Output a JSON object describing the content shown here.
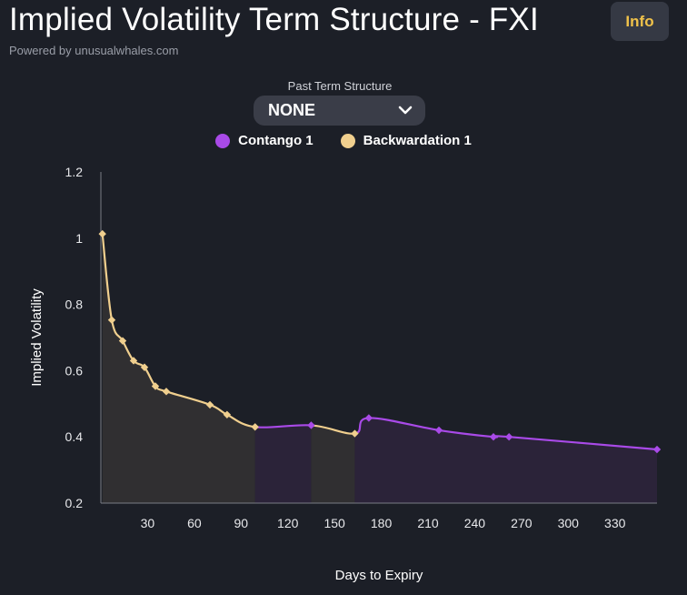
{
  "header": {
    "title": "Implied Volatility Term Structure - FXI",
    "subtitle": "Powered by unusualwhales.com",
    "info_label": "Info"
  },
  "controls": {
    "past_label": "Past Term Structure",
    "past_value": "NONE"
  },
  "colors": {
    "background": "#1c1f27",
    "contango": "#a94ae8",
    "backwardation": "#f0cf8e",
    "contango_fill": "#2b2339",
    "backwardation_fill": "#302f31",
    "info_accent": "#f0c24a"
  },
  "chart_data": {
    "type": "line",
    "xlabel": "Days to Expiry",
    "ylabel": "Implied Volatility",
    "ylim": [
      0.2,
      1.2
    ],
    "xlim": [
      0,
      357
    ],
    "x_ticks": [
      30,
      60,
      90,
      120,
      150,
      180,
      210,
      240,
      270,
      300,
      330
    ],
    "y_ticks": [
      1.2,
      1,
      0.8,
      0.6,
      0.4,
      0.2
    ],
    "legend_position": "top-center",
    "grid": false,
    "series": [
      {
        "name": "Contango 1",
        "color": "#a94ae8"
      },
      {
        "name": "Backwardation 1",
        "color": "#f0cf8e"
      }
    ],
    "points": [
      {
        "x": 1,
        "y": 1.013
      },
      {
        "x": 7,
        "y": 0.753
      },
      {
        "x": 14,
        "y": 0.69
      },
      {
        "x": 21,
        "y": 0.63
      },
      {
        "x": 28,
        "y": 0.61
      },
      {
        "x": 35,
        "y": 0.553
      },
      {
        "x": 42,
        "y": 0.537
      },
      {
        "x": 70,
        "y": 0.497
      },
      {
        "x": 81,
        "y": 0.467
      },
      {
        "x": 99,
        "y": 0.43
      },
      {
        "x": 135,
        "y": 0.435
      },
      {
        "x": 163,
        "y": 0.41
      },
      {
        "x": 172,
        "y": 0.457
      },
      {
        "x": 217,
        "y": 0.42
      },
      {
        "x": 252,
        "y": 0.4
      },
      {
        "x": 262,
        "y": 0.4
      },
      {
        "x": 357,
        "y": 0.362
      }
    ],
    "segments": [
      {
        "from": 1,
        "to": 99,
        "type": "Backwardation 1"
      },
      {
        "from": 99,
        "to": 135,
        "type": "Contango 1"
      },
      {
        "from": 135,
        "to": 163,
        "type": "Backwardation 1"
      },
      {
        "from": 163,
        "to": 357,
        "type": "Contango 1"
      }
    ]
  }
}
